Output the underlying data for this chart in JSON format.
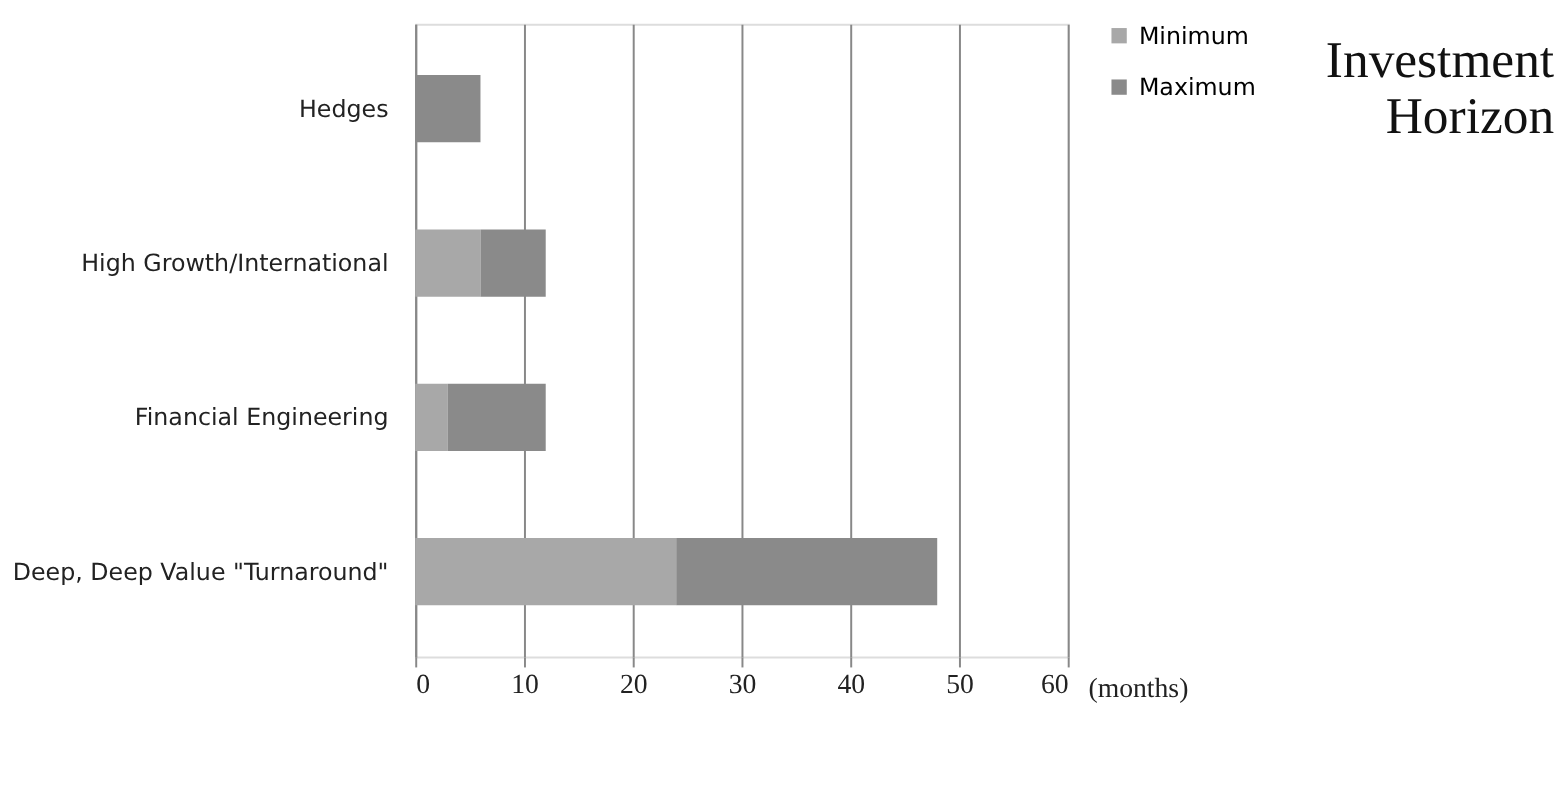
{
  "chart_data": {
    "type": "bar",
    "orientation": "horizontal",
    "stacked": true,
    "title": "Investment Horizon",
    "xlabel": "(months)",
    "categories": [
      "Hedges",
      "High Growth/International",
      "Financial Engineering",
      "Deep, Deep Value \"Turnaround\""
    ],
    "series": [
      {
        "name": "Minimum",
        "color": "#a8a8a8",
        "values": [
          0,
          6,
          3,
          24
        ]
      },
      {
        "name": "Maximum",
        "color": "#8a8a8a",
        "values": [
          6,
          6,
          9,
          24
        ]
      }
    ],
    "xlim": [
      0,
      60
    ],
    "xticks": [
      0,
      10,
      20,
      30,
      40,
      50,
      60
    ],
    "grid": "x",
    "legend": "right"
  }
}
